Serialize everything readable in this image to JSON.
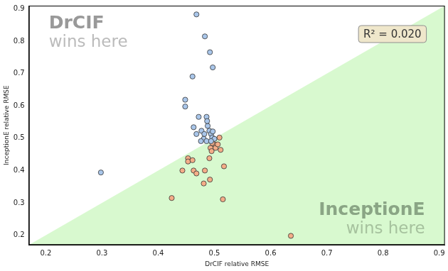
{
  "chart_data": {
    "type": "scatter",
    "x_label": "DrCIF relative RMSE",
    "y_label": "InceptionE relative RMSE",
    "xlim": [
      0.17,
      0.91
    ],
    "ylim": [
      0.17,
      0.91
    ],
    "xticks": [
      0.2,
      0.3,
      0.4,
      0.5,
      0.6,
      0.7,
      0.8,
      0.9
    ],
    "yticks": [
      0.2,
      0.3,
      0.4,
      0.5,
      0.6,
      0.7,
      0.8,
      0.9
    ],
    "grid": false,
    "annotations": [
      {
        "lines": [
          "DrCIF",
          "wins here"
        ]
      },
      {
        "lines": [
          "InceptionE",
          "wins here"
        ]
      },
      {
        "text": "R² = 0.020"
      }
    ],
    "series": [
      {
        "color": "#a9c6ea",
        "marker": "circle",
        "x": [
          0.468,
          0.483,
          0.492,
          0.497,
          0.461,
          0.448,
          0.448,
          0.472,
          0.486,
          0.463,
          0.298,
          0.477,
          0.482,
          0.488,
          0.491,
          0.494,
          0.496,
          0.481,
          0.476,
          0.486,
          0.5,
          0.494,
          0.468,
          0.487,
          0.497
        ],
        "values": [
          0.883,
          0.815,
          0.766,
          0.719,
          0.691,
          0.619,
          0.598,
          0.566,
          0.566,
          0.534,
          0.394,
          0.523,
          0.513,
          0.538,
          0.523,
          0.513,
          0.502,
          0.498,
          0.491,
          0.491,
          0.498,
          0.491,
          0.513,
          0.553,
          0.521
        ]
      },
      {
        "color": "#f4ad88",
        "marker": "circle",
        "x": [
          0.509,
          0.5,
          0.493,
          0.502,
          0.496,
          0.506,
          0.511,
          0.495,
          0.517,
          0.491,
          0.453,
          0.453,
          0.461,
          0.443,
          0.463,
          0.468,
          0.483,
          0.492,
          0.481,
          0.424,
          0.515,
          0.636
        ],
        "values": [
          0.502,
          0.481,
          0.47,
          0.47,
          0.485,
          0.481,
          0.464,
          0.46,
          0.413,
          0.438,
          0.438,
          0.428,
          0.432,
          0.4,
          0.4,
          0.391,
          0.4,
          0.372,
          0.36,
          0.315,
          0.311,
          0.198
        ]
      }
    ]
  }
}
